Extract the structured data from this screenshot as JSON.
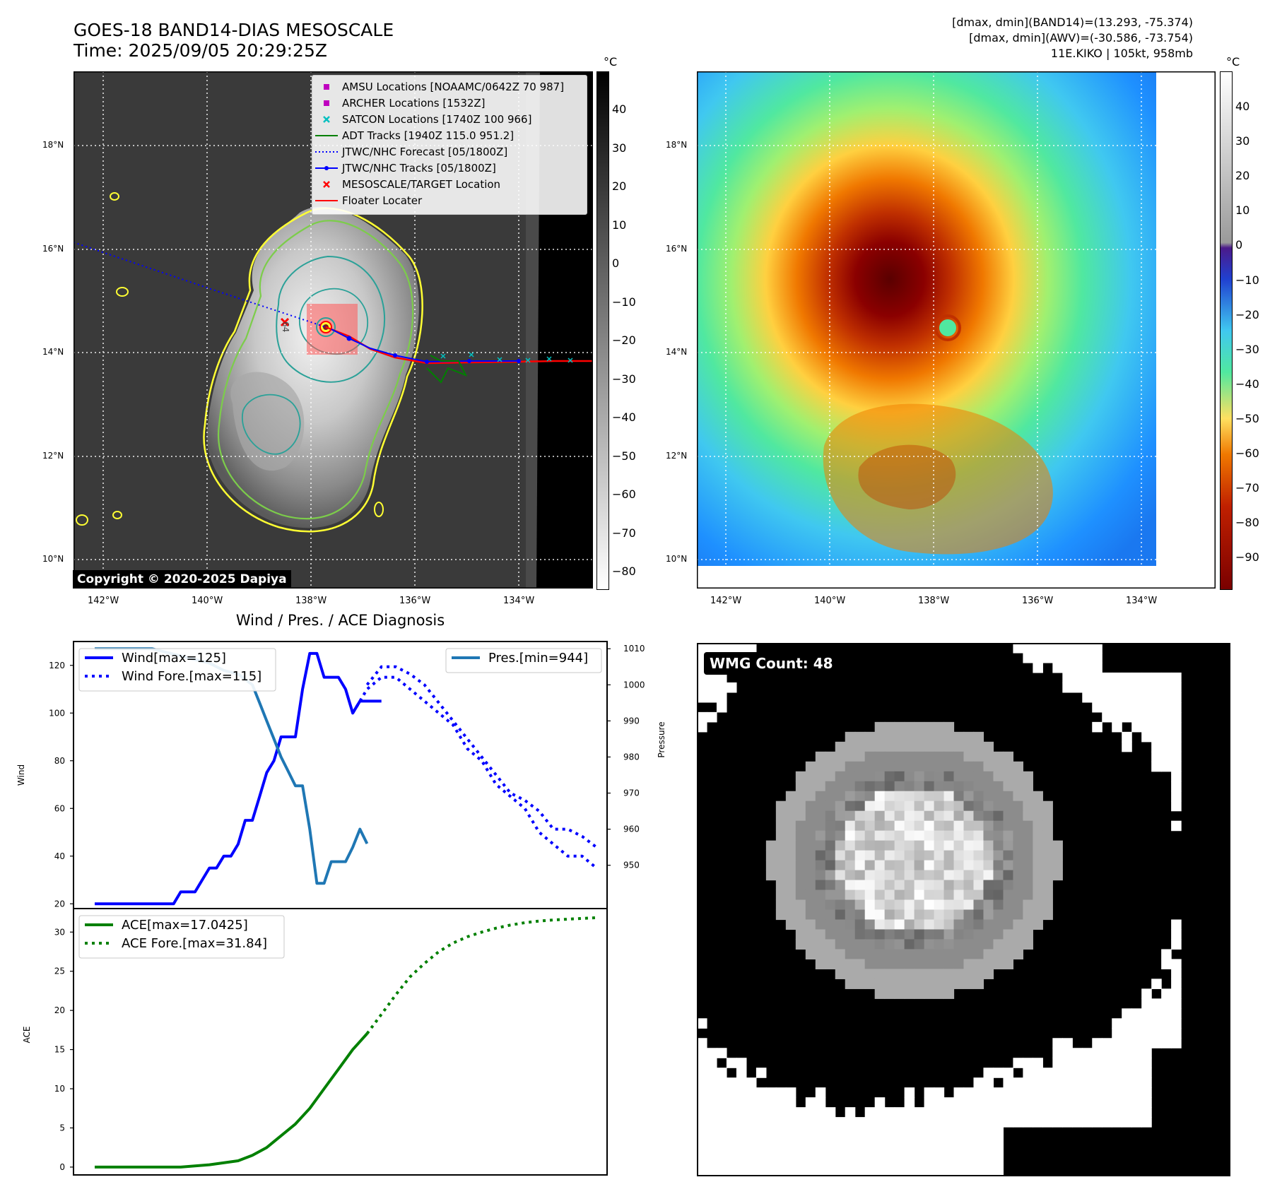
{
  "header": {
    "title_line1": "GOES-18 BAND14-DIAS MESOSCALE",
    "title_line2": "Time: 2025/09/05 20:29:25Z",
    "info_line1": "[dmax, dmin](BAND14)=(13.293, -75.374)",
    "info_line2": "[dmax, dmin](AWV)=(-30.586, -73.754)",
    "info_line3": "11E.KIKO | 105kt, 958mb"
  },
  "left_map": {
    "copyright": "Copyright © 2020-2025 Dapiya",
    "colorbar_unit": "°C",
    "colorbar_ticks": [
      "40",
      "30",
      "20",
      "10",
      "0",
      "−10",
      "−20",
      "−30",
      "−40",
      "−50",
      "−60",
      "−70",
      "−80"
    ],
    "lat_labels": [
      "18°N",
      "16°N",
      "14°N",
      "12°N",
      "10°N"
    ],
    "lon_labels": [
      "142°W",
      "140°W",
      "138°W",
      "136°W",
      "134°W"
    ],
    "legend": [
      {
        "label": "AMSU Locations [NOAAMC/0642Z 70 987]",
        "symbol": "square",
        "color": "#bf00bf"
      },
      {
        "label": "ARCHER Locations [1532Z]",
        "symbol": "square",
        "color": "#bf00bf"
      },
      {
        "label": "SATCON Locations [1740Z 100 966]",
        "symbol": "x",
        "color": "#00bfbf"
      },
      {
        "label": "ADT Tracks [1940Z 115.0 951.2]",
        "symbol": "line",
        "color": "#008000"
      },
      {
        "label": "JTWC/NHC Forecast [05/1800Z]",
        "symbol": "dotted",
        "color": "#0000ff"
      },
      {
        "label": "JTWC/NHC Tracks [05/1800Z]",
        "symbol": "linedot",
        "color": "#0000ff"
      },
      {
        "label": "MESOSCALE/TARGET Location",
        "symbol": "x",
        "color": "#ff0000"
      },
      {
        "label": "Floater Locater",
        "symbol": "line",
        "color": "#ff0000"
      }
    ],
    "storm_label": "64"
  },
  "right_map": {
    "colorbar_unit": "°C",
    "colorbar_ticks": [
      "40",
      "30",
      "20",
      "10",
      "0",
      "−10",
      "−20",
      "−30",
      "−40",
      "−50",
      "−60",
      "−70",
      "−80",
      "−90"
    ],
    "lat_labels": [
      "18°N",
      "16°N",
      "14°N",
      "12°N",
      "10°N"
    ],
    "lon_labels": [
      "142°W",
      "140°W",
      "138°W",
      "136°W",
      "134°W"
    ]
  },
  "wmg": {
    "label": "WMG Count: 48"
  },
  "chart_data": [
    {
      "type": "line",
      "title": "Wind / Pres. / ACE Diagnosis",
      "ylabel": "Wind",
      "ylabel_right": "Pressure",
      "ylim": [
        18,
        130
      ],
      "ylim_right": [
        938,
        1012
      ],
      "yticks": [
        "20",
        "40",
        "60",
        "80",
        "100",
        "120"
      ],
      "yticks_right": [
        "950",
        "960",
        "970",
        "980",
        "990",
        "1000",
        "1010"
      ],
      "legend_left": [
        "Wind[max=125]",
        "Wind Fore.[max=115]"
      ],
      "legend_right": [
        "Pres.[min=944]"
      ],
      "series": [
        {
          "name": "Wind[max=125]",
          "color": "#0000ff",
          "style": "solid",
          "x": [
            0,
            1,
            2,
            3,
            4,
            5,
            6,
            7,
            8,
            9,
            10,
            11,
            12,
            13,
            14,
            15,
            16,
            17,
            18,
            19,
            20,
            21,
            22,
            23,
            24,
            25,
            26,
            27,
            28,
            29,
            30,
            31,
            32,
            33,
            34,
            35,
            36,
            37,
            38,
            39,
            40
          ],
          "y": [
            20,
            20,
            20,
            20,
            20,
            20,
            20,
            20,
            20,
            20,
            20,
            20,
            25,
            25,
            25,
            30,
            35,
            35,
            40,
            40,
            45,
            55,
            55,
            65,
            75,
            80,
            90,
            90,
            90,
            110,
            125,
            125,
            115,
            115,
            115,
            110,
            100,
            105,
            105,
            105,
            105
          ]
        },
        {
          "name": "Wind Fore.[max=115]",
          "color": "#0000ff",
          "style": "dotted",
          "x": [
            36,
            38,
            40,
            42,
            44,
            46,
            48,
            50,
            52,
            54,
            56,
            58,
            60,
            62,
            64,
            66,
            68,
            70
          ],
          "y": [
            100,
            110,
            115,
            115,
            110,
            105,
            100,
            95,
            85,
            80,
            70,
            65,
            60,
            50,
            45,
            40,
            40,
            35
          ]
        },
        {
          "name": "Pres.[min=944]",
          "color": "#1f77b4",
          "style": "solid",
          "axis": "right",
          "x": [
            0,
            2,
            4,
            6,
            8,
            10,
            12,
            14,
            16,
            18,
            20,
            22,
            23,
            24,
            25,
            26,
            27,
            28,
            29,
            30,
            31,
            32,
            33,
            34,
            35,
            36,
            37,
            38
          ],
          "y": [
            1010,
            1010,
            1010,
            1010,
            1010,
            1009,
            1008,
            1007,
            1006,
            1004,
            1003,
            1000,
            995,
            990,
            985,
            980,
            976,
            972,
            972,
            960,
            945,
            945,
            951,
            951,
            951,
            955,
            960,
            956
          ]
        },
        {
          "name": "Pres. Fore.",
          "color": "#0000ff",
          "style": "dotted",
          "axis": "right",
          "ghost": true,
          "x": [
            38,
            40,
            42,
            44,
            46,
            48,
            50,
            52,
            54,
            56,
            58,
            60,
            62,
            64,
            66,
            68,
            70
          ],
          "y": [
            1000,
            1005,
            1005,
            1003,
            1000,
            995,
            990,
            985,
            980,
            975,
            970,
            968,
            965,
            960,
            960,
            958,
            955
          ]
        }
      ]
    },
    {
      "type": "line",
      "ylabel": "ACE",
      "ylim": [
        -1,
        33
      ],
      "yticks": [
        "0",
        "5",
        "10",
        "15",
        "20",
        "25",
        "30"
      ],
      "legend": [
        "ACE[max=17.0425]",
        "ACE Fore.[max=31.84]"
      ],
      "series": [
        {
          "name": "ACE[max=17.0425]",
          "color": "#008000",
          "style": "solid",
          "x": [
            0,
            4,
            8,
            12,
            16,
            20,
            22,
            24,
            26,
            28,
            30,
            32,
            34,
            36,
            38
          ],
          "y": [
            0,
            0,
            0,
            0,
            0.3,
            0.8,
            1.5,
            2.5,
            4,
            5.5,
            7.5,
            10,
            12.5,
            15,
            17.04
          ]
        },
        {
          "name": "ACE Fore.[max=31.84]",
          "color": "#008000",
          "style": "dotted",
          "x": [
            38,
            40,
            42,
            44,
            46,
            48,
            50,
            52,
            54,
            56,
            58,
            60,
            62,
            64,
            66,
            68,
            70
          ],
          "y": [
            17.04,
            19.5,
            22,
            24.3,
            26,
            27.5,
            28.6,
            29.4,
            30,
            30.5,
            30.9,
            31.2,
            31.4,
            31.55,
            31.65,
            31.75,
            31.84
          ]
        }
      ]
    }
  ]
}
